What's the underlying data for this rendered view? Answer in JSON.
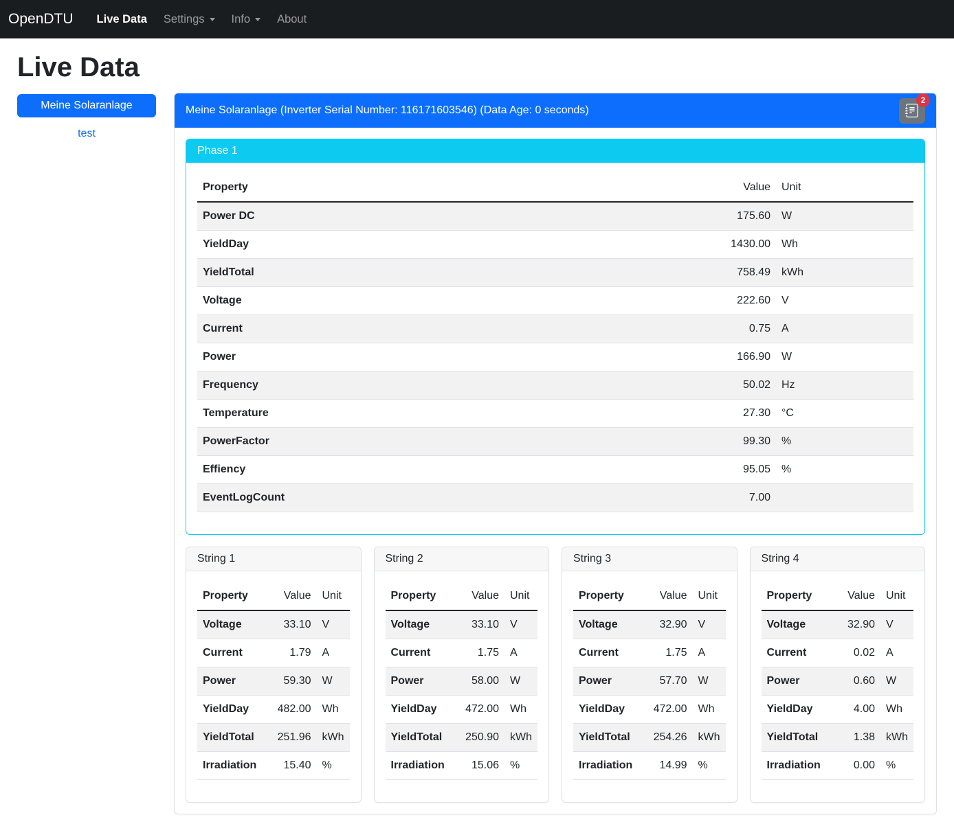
{
  "navbar": {
    "brand": "OpenDTU",
    "items": [
      {
        "label": "Live Data",
        "active": true,
        "dropdown": false
      },
      {
        "label": "Settings",
        "active": false,
        "dropdown": true
      },
      {
        "label": "Info",
        "active": false,
        "dropdown": true
      },
      {
        "label": "About",
        "active": false,
        "dropdown": false
      }
    ]
  },
  "page": {
    "title": "Live Data"
  },
  "sidebar": {
    "inverter_button": "Meine Solaranlage",
    "test_link": "test"
  },
  "inverter": {
    "header": "Meine Solaranlage (Inverter Serial Number: 116171603546) (Data Age: 0 seconds)",
    "eventlog_badge": "2",
    "eventlog_icon": "journal-text-icon",
    "phase": {
      "title": "Phase 1",
      "columns": [
        "Property",
        "Value",
        "Unit"
      ],
      "rows": [
        [
          "Power DC",
          "175.60",
          "W"
        ],
        [
          "YieldDay",
          "1430.00",
          "Wh"
        ],
        [
          "YieldTotal",
          "758.49",
          "kWh"
        ],
        [
          "Voltage",
          "222.60",
          "V"
        ],
        [
          "Current",
          "0.75",
          "A"
        ],
        [
          "Power",
          "166.90",
          "W"
        ],
        [
          "Frequency",
          "50.02",
          "Hz"
        ],
        [
          "Temperature",
          "27.30",
          "°C"
        ],
        [
          "PowerFactor",
          "99.30",
          "%"
        ],
        [
          "Effiency",
          "95.05",
          "%"
        ],
        [
          "EventLogCount",
          "7.00",
          ""
        ]
      ]
    },
    "strings": [
      {
        "title": "String 1",
        "columns": [
          "Property",
          "Value",
          "Unit"
        ],
        "rows": [
          [
            "Voltage",
            "33.10",
            "V"
          ],
          [
            "Current",
            "1.79",
            "A"
          ],
          [
            "Power",
            "59.30",
            "W"
          ],
          [
            "YieldDay",
            "482.00",
            "Wh"
          ],
          [
            "YieldTotal",
            "251.96",
            "kWh"
          ],
          [
            "Irradiation",
            "15.40",
            "%"
          ]
        ]
      },
      {
        "title": "String 2",
        "columns": [
          "Property",
          "Value",
          "Unit"
        ],
        "rows": [
          [
            "Voltage",
            "33.10",
            "V"
          ],
          [
            "Current",
            "1.75",
            "A"
          ],
          [
            "Power",
            "58.00",
            "W"
          ],
          [
            "YieldDay",
            "472.00",
            "Wh"
          ],
          [
            "YieldTotal",
            "250.90",
            "kWh"
          ],
          [
            "Irradiation",
            "15.06",
            "%"
          ]
        ]
      },
      {
        "title": "String 3",
        "columns": [
          "Property",
          "Value",
          "Unit"
        ],
        "rows": [
          [
            "Voltage",
            "32.90",
            "V"
          ],
          [
            "Current",
            "1.75",
            "A"
          ],
          [
            "Power",
            "57.70",
            "W"
          ],
          [
            "YieldDay",
            "472.00",
            "Wh"
          ],
          [
            "YieldTotal",
            "254.26",
            "kWh"
          ],
          [
            "Irradiation",
            "14.99",
            "%"
          ]
        ]
      },
      {
        "title": "String 4",
        "columns": [
          "Property",
          "Value",
          "Unit"
        ],
        "rows": [
          [
            "Voltage",
            "32.90",
            "V"
          ],
          [
            "Current",
            "0.02",
            "A"
          ],
          [
            "Power",
            "0.60",
            "W"
          ],
          [
            "YieldDay",
            "4.00",
            "Wh"
          ],
          [
            "YieldTotal",
            "1.38",
            "kWh"
          ],
          [
            "Irradiation",
            "0.00",
            "%"
          ]
        ]
      }
    ]
  },
  "colors": {
    "primary": "#0d6efd",
    "info": "#0dcaf0",
    "danger": "#dc3545",
    "secondary": "#6c757d",
    "navbar_bg": "#1a1d20"
  }
}
